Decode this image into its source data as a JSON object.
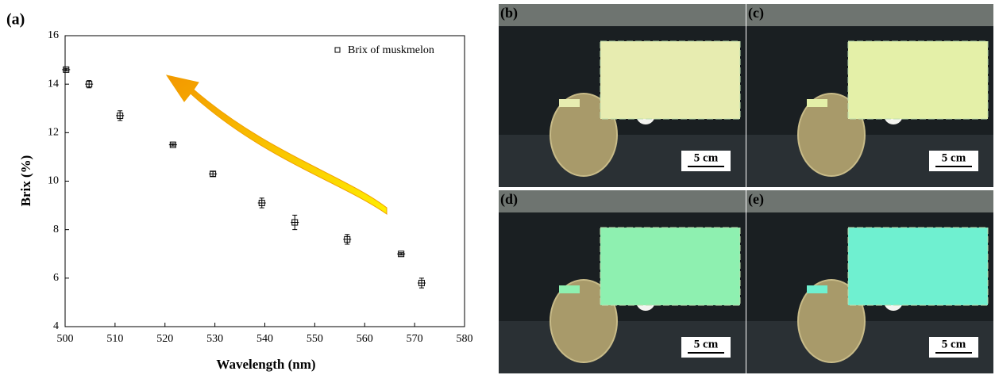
{
  "chart_data": {
    "type": "scatter",
    "panel_label": "(a)",
    "x_label": "Wavelength (nm)",
    "y_label": "Brix (%)",
    "x": [
      500.2,
      504.8,
      511.0,
      521.6,
      529.6,
      539.4,
      546.0,
      556.5,
      567.3,
      571.4
    ],
    "series": [
      {
        "name": "Brix of muskmelon",
        "color": "#000000",
        "values": [
          14.6,
          14.0,
          12.7,
          11.5,
          10.3,
          9.1,
          8.3,
          7.6,
          7.0,
          5.8
        ],
        "errors": [
          0.05,
          0.15,
          0.2,
          0.05,
          0.1,
          0.2,
          0.3,
          0.2,
          0.05,
          0.2
        ]
      }
    ],
    "xlim": [
      500,
      580
    ],
    "xticks": [
      500,
      510,
      520,
      530,
      540,
      550,
      560,
      570,
      580
    ],
    "ylim": [
      4,
      16
    ],
    "yticks": [
      4,
      6,
      8,
      10,
      12,
      14,
      16
    ]
  },
  "panels": [
    {
      "label": "(b)",
      "scale": "5 cm"
    },
    {
      "label": "(c)",
      "scale": "5 cm"
    },
    {
      "label": "(d)",
      "scale": "5 cm"
    },
    {
      "label": "(e)",
      "scale": "5 cm"
    }
  ]
}
